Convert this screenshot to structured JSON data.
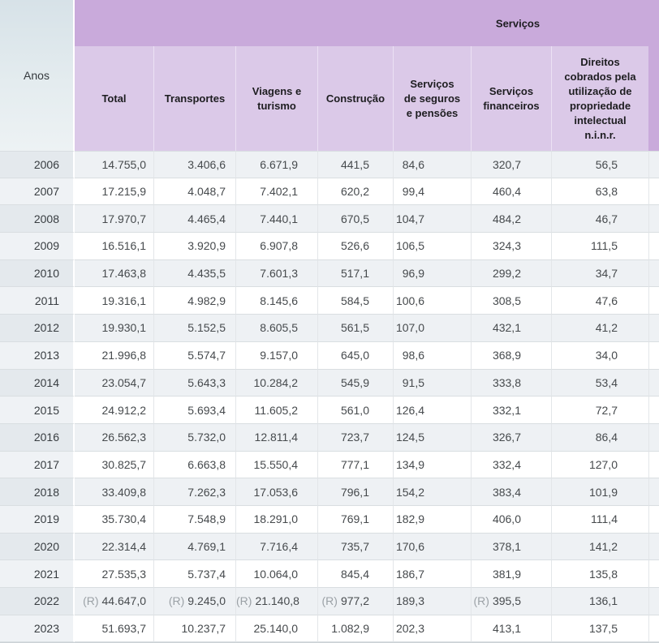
{
  "header": {
    "rows_label": "Anos",
    "group_label": "Serviços"
  },
  "columns": [
    "Total",
    "Transportes",
    "Viagens e\nturismo",
    "Construção",
    "Serviços\nde seguros\ne pensões",
    "Serviços\nfinanceiros",
    "Direitos\ncobrados pela\nutilização de\npropriedade\nintelectual\nn.i.n.r."
  ],
  "revised_marker": "(R)",
  "colors": {
    "group_header_bg": "#c9aadb",
    "sub_header_bg": "#dbc9e8",
    "anos_header_top": "#d7e2e8",
    "anos_header_bottom": "#edf2f4",
    "odd_row_bg": "#eef1f4",
    "odd_row_year_bg": "#e4e9ed",
    "even_row_bg": "#ffffff",
    "even_row_year_bg": "#eff2f5",
    "row_border": "#d9dee1",
    "column_border": "#e3e6e9",
    "text": "#464a4d",
    "revised_text": "#9ba1a6"
  },
  "chart_data": {
    "type": "table",
    "title": "Serviços",
    "categories_label": "Anos",
    "categories": [
      "2006",
      "2007",
      "2008",
      "2009",
      "2010",
      "2011",
      "2012",
      "2013",
      "2014",
      "2015",
      "2016",
      "2017",
      "2018",
      "2019",
      "2020",
      "2021",
      "2022",
      "2023"
    ],
    "number_format": "pt (1.234,5)",
    "series": [
      {
        "name": "Total",
        "values": [
          14755.0,
          17215.9,
          17970.7,
          16516.1,
          17463.8,
          19316.1,
          19930.1,
          21996.8,
          23054.7,
          24912.2,
          26562.3,
          30825.7,
          33409.8,
          35730.4,
          22314.4,
          27535.3,
          44647.0,
          51693.7
        ]
      },
      {
        "name": "Transportes",
        "values": [
          3406.6,
          4048.7,
          4465.4,
          3920.9,
          4435.5,
          4982.9,
          5152.5,
          5574.7,
          5643.3,
          5693.4,
          5732.0,
          6663.8,
          7262.3,
          7548.9,
          4769.1,
          5737.4,
          9245.0,
          10237.7
        ]
      },
      {
        "name": "Viagens e turismo",
        "values": [
          6671.9,
          7402.1,
          7440.1,
          6907.8,
          7601.3,
          8145.6,
          8605.5,
          9157.0,
          10284.2,
          11605.2,
          12811.4,
          15550.4,
          17053.6,
          18291.0,
          7716.4,
          10064.0,
          21140.8,
          25140.0
        ]
      },
      {
        "name": "Construção",
        "values": [
          441.5,
          620.2,
          670.5,
          526.6,
          517.1,
          584.5,
          561.5,
          645.0,
          545.9,
          561.0,
          723.7,
          777.1,
          796.1,
          769.1,
          735.7,
          845.4,
          977.2,
          1082.9
        ]
      },
      {
        "name": "Serviços de seguros e pensões",
        "values": [
          84.6,
          99.4,
          104.7,
          106.5,
          96.9,
          100.6,
          107.0,
          98.6,
          91.5,
          126.4,
          124.5,
          134.9,
          154.2,
          182.9,
          170.6,
          186.7,
          189.3,
          202.3
        ]
      },
      {
        "name": "Serviços financeiros",
        "values": [
          320.7,
          460.4,
          484.2,
          324.3,
          299.2,
          308.5,
          432.1,
          368.9,
          333.8,
          332.1,
          326.7,
          332.4,
          383.4,
          406.0,
          378.1,
          381.9,
          395.5,
          413.1
        ]
      },
      {
        "name": "Direitos cobrados pela utilização de propriedade intelectual n.i.n.r.",
        "values": [
          56.5,
          63.8,
          46.7,
          111.5,
          34.7,
          47.6,
          41.2,
          34.0,
          53.4,
          72.7,
          86.4,
          127.0,
          101.9,
          111.4,
          141.2,
          135.8,
          136.1,
          137.5
        ]
      }
    ],
    "revised": {
      "year": "2022",
      "series_indexes": [
        0,
        1,
        2,
        3,
        5
      ]
    }
  }
}
